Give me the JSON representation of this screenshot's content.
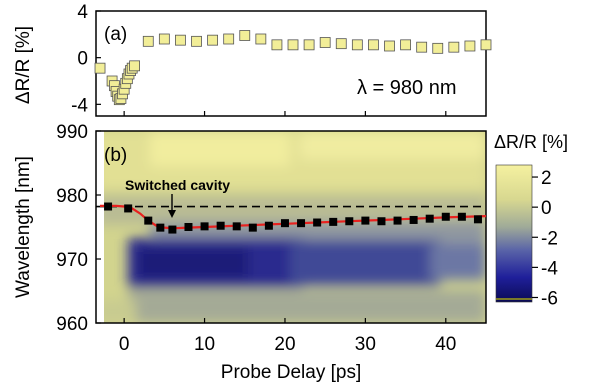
{
  "figure": {
    "xlabel": "Probe Delay [ps]",
    "x_ticks": [
      "0",
      "10",
      "20",
      "30",
      "40"
    ]
  },
  "chart_data": [
    {
      "type": "scatter",
      "panel_label": "(a)",
      "annotation": "λ = 980 nm",
      "ylabel": "ΔR/R [%]",
      "xlim": [
        -3.5,
        45
      ],
      "ylim": [
        -5,
        4
      ],
      "y_ticks": [
        4,
        0,
        -4
      ],
      "y_tick_labels": [
        "4",
        "0",
        "-4"
      ],
      "marker_color": "#f2ee98",
      "series": [
        {
          "x": [
            -3,
            -1.5,
            -1.2,
            -1.0,
            -0.8,
            -0.6,
            -0.4,
            -0.2,
            0.0,
            0.2,
            0.4,
            0.6,
            0.8,
            1.0,
            1.3,
            3,
            5,
            7,
            9,
            11,
            13,
            15,
            17,
            19,
            21,
            23,
            25,
            27,
            29,
            31,
            33,
            35,
            37,
            39,
            41,
            43,
            45
          ],
          "y": [
            -0.9,
            -2.0,
            -2.4,
            -2.9,
            -3.3,
            -3.6,
            -3.5,
            -3.1,
            -2.7,
            -2.2,
            -1.8,
            -1.4,
            -1.1,
            -0.9,
            -0.7,
            1.4,
            1.6,
            1.5,
            1.4,
            1.5,
            1.6,
            1.9,
            1.6,
            1.1,
            1.1,
            1.1,
            1.3,
            1.2,
            1.1,
            1.1,
            1.0,
            1.1,
            0.9,
            0.8,
            0.9,
            1.0,
            1.1
          ]
        }
      ]
    },
    {
      "type": "heatmap",
      "panel_label": "(b)",
      "ylabel": "Wavelength [nm]",
      "xlim": [
        -3.5,
        45
      ],
      "ylim": [
        960,
        990
      ],
      "y_ticks": [
        960,
        970,
        980,
        990
      ],
      "y_tick_labels": [
        "960",
        "970",
        "980",
        "990"
      ],
      "annotation": "Switched cavity",
      "reference_line": {
        "y": 978.2,
        "style": "dashed"
      },
      "resonance_points": {
        "x": [
          -2,
          0.5,
          3,
          4.5,
          6,
          8,
          10,
          12,
          14,
          16,
          18,
          20,
          22,
          24,
          26,
          28,
          30,
          32,
          34,
          36,
          38,
          40,
          42,
          44
        ],
        "y": [
          978.2,
          977.9,
          976.0,
          974.9,
          974.6,
          975.0,
          975.1,
          975.2,
          975.1,
          974.9,
          975.2,
          975.6,
          975.6,
          975.7,
          975.8,
          975.9,
          976.0,
          975.9,
          976.0,
          976.1,
          976.3,
          976.6,
          976.6,
          976.2
        ]
      },
      "fit_line": {
        "color": "#e8211f",
        "x": [
          -3,
          -1,
          0,
          1,
          2,
          3,
          4,
          5,
          6,
          8,
          10,
          12,
          14,
          16,
          18,
          20,
          24,
          28,
          32,
          36,
          40,
          45
        ],
        "y": [
          978.3,
          978.3,
          978.2,
          977.9,
          977.1,
          976.0,
          975.2,
          974.9,
          974.8,
          974.9,
          975.0,
          975.1,
          975.2,
          975.3,
          975.4,
          975.5,
          975.7,
          975.9,
          976.1,
          976.3,
          976.5,
          976.7
        ]
      },
      "colorbar": {
        "label": "ΔR/R [%]",
        "ticks": [
          2,
          0,
          -2,
          -4,
          -6
        ],
        "tick_labels": [
          "2",
          "0",
          "-2",
          "-4",
          "-6"
        ],
        "range": [
          -6.3,
          2.8
        ],
        "colors": [
          "#0b0b55",
          "#1f1f9a",
          "#5a64a8",
          "#a0ab98",
          "#d8d890",
          "#f5f1a0"
        ]
      }
    }
  ]
}
